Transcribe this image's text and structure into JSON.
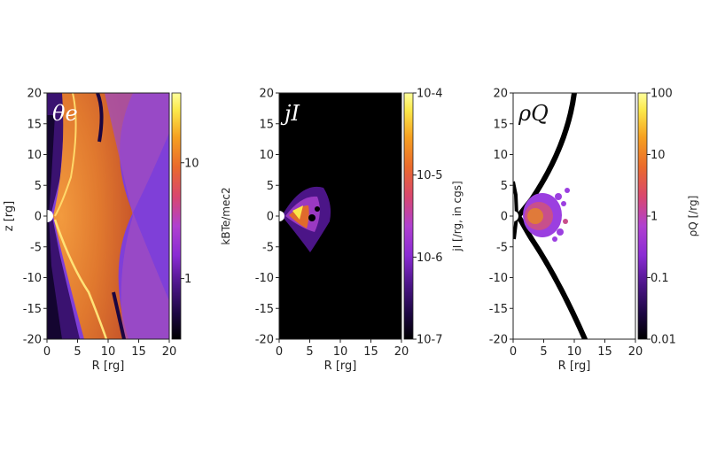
{
  "figure": {
    "colors": {
      "background": "#ffffff",
      "plot_black": "#000000",
      "axis": "#222222",
      "colormap": [
        "#000000",
        "#1b0640",
        "#4b1587",
        "#8a2bd3",
        "#b040d0",
        "#d9476e",
        "#ea6a2c",
        "#f6a020",
        "#fbe84a",
        "#ffff9c"
      ]
    }
  },
  "chart_data": [
    {
      "type": "heatmap",
      "title": "θe",
      "xlabel": "R [rg]",
      "ylabel": "z [rg]",
      "xlim": [
        0,
        20
      ],
      "ylim": [
        -20,
        20
      ],
      "x_ticks": [
        0,
        5,
        10,
        15,
        20
      ],
      "y_ticks": [
        20,
        15,
        10,
        5,
        0,
        -5,
        -10,
        -15,
        -20
      ],
      "grid": false,
      "colorbar": {
        "label": "kBTe/mec2",
        "scale": "log",
        "range": [
          0.3,
          40
        ],
        "tick_values": [
          1,
          10
        ],
        "tick_labels": [
          "1",
          "10"
        ]
      }
    },
    {
      "type": "heatmap",
      "title": "jI",
      "xlabel": "R [rg]",
      "ylabel": "",
      "xlim": [
        0,
        20
      ],
      "ylim": [
        -20,
        20
      ],
      "x_ticks": [
        0,
        5,
        10,
        15,
        20
      ],
      "y_ticks": [
        20,
        15,
        10,
        5,
        0,
        -5,
        -10,
        -15,
        -20
      ],
      "grid": false,
      "colorbar": {
        "label": "jI [/rg, in cgs]",
        "scale": "log",
        "range": [
          1e-07,
          0.0001
        ],
        "tick_values": [
          0.0001,
          1e-05,
          1e-06,
          1e-07
        ],
        "tick_labels": [
          "10-4",
          "10-5",
          "10-6",
          "10-7"
        ]
      }
    },
    {
      "type": "scatter",
      "title": "ρQ",
      "xlabel": "R [rg]",
      "ylabel": "",
      "xlim": [
        0,
        20
      ],
      "ylim": [
        -20,
        20
      ],
      "x_ticks": [
        0,
        5,
        10,
        15,
        20
      ],
      "y_ticks": [
        20,
        15,
        10,
        5,
        0,
        -5,
        -10,
        -15,
        -20
      ],
      "grid": false,
      "colorbar": {
        "label": "ρQ [/rg]",
        "scale": "log",
        "range": [
          0.01,
          100
        ],
        "tick_values": [
          100,
          10,
          1,
          0.1,
          0.01
        ],
        "tick_labels": [
          "100",
          "10",
          "1",
          "0.1",
          "0.01"
        ]
      }
    }
  ]
}
